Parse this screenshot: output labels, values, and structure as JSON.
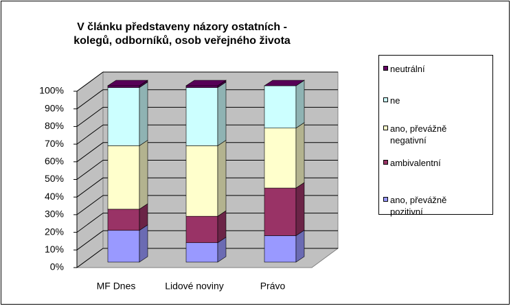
{
  "chart_data": {
    "type": "bar3d_stacked_percent",
    "title": "V článku představeny názory ostatních - kolegů, odborníků, osob veřejného života",
    "categories": [
      "MF Dnes",
      "Lidové noviny",
      "Právo"
    ],
    "series": [
      {
        "name": "ano, převážně pozitivní",
        "color": "#9999ff",
        "values": [
          18,
          11,
          15
        ]
      },
      {
        "name": "ambivalentní",
        "color": "#993366",
        "values": [
          12,
          15,
          27
        ]
      },
      {
        "name": "ano, převážně negativní",
        "color": "#ffffcc",
        "values": [
          36,
          40,
          34
        ]
      },
      {
        "name": "ne",
        "color": "#ccffff",
        "values": [
          33,
          33,
          24
        ]
      },
      {
        "name": "neutrální",
        "color": "#660066",
        "values": [
          1,
          1,
          0
        ]
      }
    ],
    "ylim": [
      0,
      100
    ],
    "yticks": [
      {
        "value": 0,
        "label": "0%"
      },
      {
        "value": 10,
        "label": "10%"
      },
      {
        "value": 20,
        "label": "20%"
      },
      {
        "value": 30,
        "label": "30%"
      },
      {
        "value": 40,
        "label": "40%"
      },
      {
        "value": 50,
        "label": "50%"
      },
      {
        "value": 60,
        "label": "60%"
      },
      {
        "value": 70,
        "label": "70%"
      },
      {
        "value": 80,
        "label": "80%"
      },
      {
        "value": 90,
        "label": "90%"
      },
      {
        "value": 100,
        "label": "100%"
      }
    ],
    "grid": true,
    "legend": "right"
  }
}
